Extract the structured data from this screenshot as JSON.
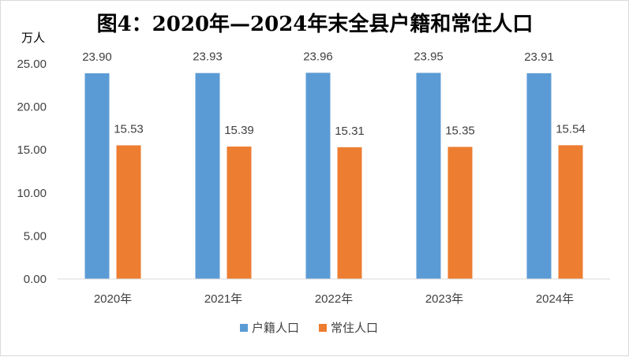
{
  "chart_data": {
    "type": "bar",
    "title": "图4：2020年—2024年末全县户籍和常住人口",
    "ylabel": "万人",
    "xlabel": "",
    "categories": [
      "2020年",
      "2021年",
      "2022年",
      "2023年",
      "2024年"
    ],
    "series": [
      {
        "name": "户籍人口",
        "color": "#5b9bd5",
        "values": [
          23.9,
          23.93,
          23.96,
          23.95,
          23.91
        ]
      },
      {
        "name": "常住人口",
        "color": "#ed7d31",
        "values": [
          15.53,
          15.39,
          15.31,
          15.35,
          15.54
        ]
      }
    ],
    "ylim": [
      0,
      25
    ],
    "yticks": [
      "0.00",
      "5.00",
      "10.00",
      "15.00",
      "20.00",
      "25.00"
    ],
    "grid": false,
    "legend_position": "bottom"
  }
}
